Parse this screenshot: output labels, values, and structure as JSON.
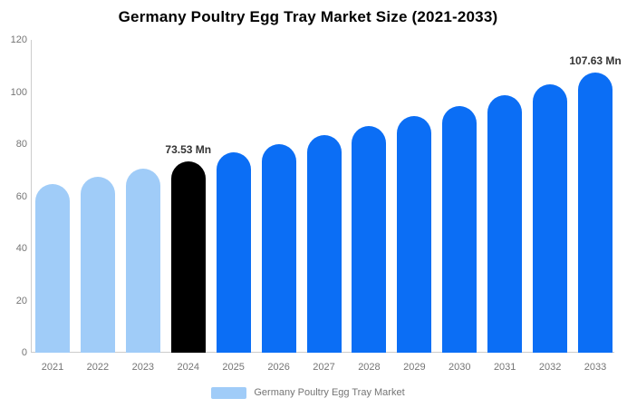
{
  "title": "Germany Poultry Egg Tray Market Size (2021-2033)",
  "legend": {
    "label": "Germany Poultry Egg Tray Market",
    "swatch_color": "#a0ccf8"
  },
  "colors": {
    "light_blue_bar": "#a0ccf8",
    "blue_bar": "#0b6ef5",
    "highlight_bar": "#000000",
    "axis_line": "#cccccc",
    "tick_text": "#757575",
    "annotation_text": "#333333",
    "title_text": "#000000"
  },
  "chart_data": {
    "type": "bar",
    "title": "Germany Poultry Egg Tray Market Size (2021-2033)",
    "xlabel": "",
    "ylabel": "",
    "categories": [
      "2021",
      "2022",
      "2023",
      "2024",
      "2025",
      "2026",
      "2027",
      "2028",
      "2029",
      "2030",
      "2031",
      "2032",
      "2033"
    ],
    "values": [
      64.8,
      67.6,
      70.5,
      73.53,
      76.7,
      80.0,
      83.4,
      87.0,
      90.8,
      94.7,
      98.8,
      103.1,
      107.63
    ],
    "bar_colors": [
      "#a0ccf8",
      "#a0ccf8",
      "#a0ccf8",
      "#000000",
      "#0b6ef5",
      "#0b6ef5",
      "#0b6ef5",
      "#0b6ef5",
      "#0b6ef5",
      "#0b6ef5",
      "#0b6ef5",
      "#0b6ef5",
      "#0b6ef5"
    ],
    "annotations": [
      {
        "category": "2024",
        "text": "73.53 Mn"
      },
      {
        "category": "2033",
        "text": "107.63 Mn"
      }
    ],
    "ylim": [
      0,
      120
    ],
    "yticks": [
      0,
      20,
      40,
      60,
      80,
      100,
      120
    ],
    "grid": false,
    "legend_position": "bottom",
    "legend_entries": [
      "Germany Poultry Egg Tray Market"
    ]
  }
}
